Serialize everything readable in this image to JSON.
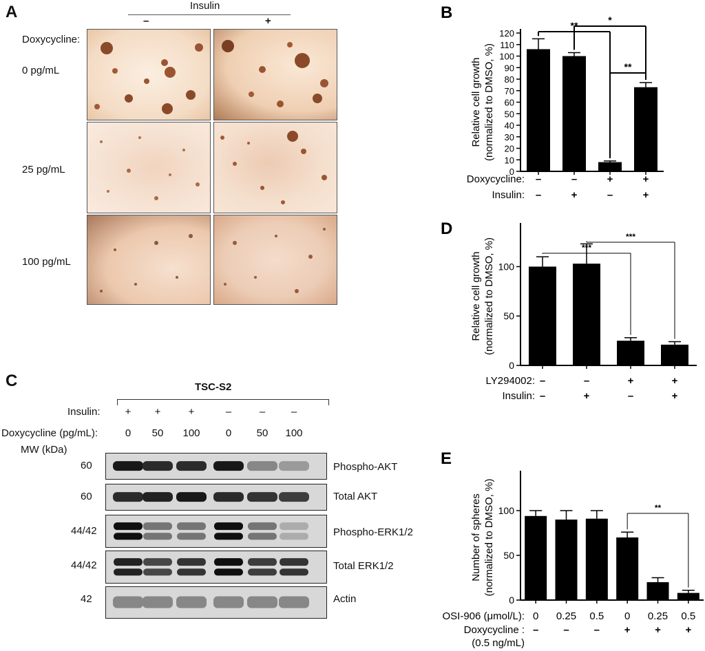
{
  "panel_a": {
    "letter": "A",
    "insulin_label": "Insulin",
    "insulin_minus": "–",
    "insulin_plus": "+",
    "dox_label": "Doxycycline:",
    "rows": [
      "0 pg/mL",
      "25 pg/mL",
      "100 pg/mL"
    ]
  },
  "panel_c": {
    "letter": "C",
    "cell_line": "TSC-S2",
    "insulin_label": "Insulin:",
    "insulin_values": [
      "+",
      "+",
      "+",
      "–",
      "–",
      "–"
    ],
    "dox_label": "Doxycycline (pg/mL):",
    "dox_values": [
      "0",
      "50",
      "100",
      "0",
      "50",
      "100"
    ],
    "mw_label": "MW  (kDa)",
    "blots": [
      {
        "mw": "60",
        "name": "Phospho-AKT",
        "intensity": [
          0.95,
          0.85,
          0.85,
          0.95,
          0.35,
          0.25
        ]
      },
      {
        "mw": "60",
        "name": "Total AKT",
        "intensity": [
          0.85,
          0.9,
          0.95,
          0.85,
          0.8,
          0.75
        ]
      },
      {
        "mw": "44/42",
        "name": "Phospho-ERK1/2",
        "intensity": [
          1.0,
          0.45,
          0.45,
          1.0,
          0.45,
          0.15
        ]
      },
      {
        "mw": "44/42",
        "name": "Total ERK1/2",
        "intensity": [
          0.9,
          0.7,
          0.8,
          1.0,
          0.75,
          0.8
        ]
      },
      {
        "mw": "42",
        "name": "Actin",
        "intensity": [
          0.35,
          0.35,
          0.35,
          0.35,
          0.35,
          0.35
        ]
      }
    ]
  },
  "chart_data": [
    {
      "id": "B",
      "type": "bar",
      "panel_letter": "B",
      "ylabel": [
        "Relative cell growth",
        "(normalized to DMSO, %)"
      ],
      "ylim": [
        0,
        120
      ],
      "yticks": [
        0,
        10,
        20,
        30,
        40,
        50,
        60,
        70,
        80,
        90,
        100,
        110,
        120
      ],
      "values": [
        106,
        100,
        8,
        73
      ],
      "errors": [
        9,
        3,
        1,
        4
      ],
      "conditions": [
        {
          "label": "Doxycycline:",
          "values": [
            "–",
            "–",
            "+",
            "+"
          ]
        },
        {
          "label": "Insulin:",
          "values": [
            "–",
            "+",
            "–",
            "+"
          ]
        }
      ],
      "significance": [
        {
          "bars": [
            0,
            2
          ],
          "label": "**"
        },
        {
          "bars": [
            1,
            3
          ],
          "label": "*"
        },
        {
          "bars": [
            2,
            3
          ],
          "label": "**"
        }
      ]
    },
    {
      "id": "D",
      "type": "bar",
      "panel_letter": "D",
      "ylabel": [
        "Relative cell growth",
        "(normalized to DMSO, %)"
      ],
      "ylim": [
        0,
        140
      ],
      "yticks": [
        0,
        50,
        100
      ],
      "values": [
        100,
        103,
        25,
        21
      ],
      "errors": [
        10,
        20,
        3,
        3
      ],
      "conditions": [
        {
          "label": "LY294002:",
          "values": [
            "–",
            "–",
            "+",
            "+"
          ]
        },
        {
          "label": "Insulin:",
          "values": [
            "–",
            "+",
            "–",
            "+"
          ]
        }
      ],
      "significance": [
        {
          "bars": [
            0,
            2
          ],
          "label": "***"
        },
        {
          "bars": [
            1,
            3
          ],
          "label": "***"
        }
      ]
    },
    {
      "id": "E",
      "type": "bar",
      "panel_letter": "E",
      "ylabel": [
        "Number of spheres",
        "(normalized to DMSO, %)"
      ],
      "ylim": [
        0,
        140
      ],
      "yticks": [
        0,
        50,
        100
      ],
      "values": [
        94,
        90,
        91,
        70,
        20,
        8
      ],
      "errors": [
        6,
        10,
        9,
        6,
        5,
        3
      ],
      "conditions": [
        {
          "label": "OSI-906 (μmol/L):",
          "values": [
            "0",
            "0.25",
            "0.5",
            "0",
            "0.25",
            "0.5"
          ]
        },
        {
          "label": "Doxycycline :",
          "values": [
            "–",
            "–",
            "–",
            "+",
            "+",
            "+"
          ]
        }
      ],
      "condition_note": "(0.5 ng/mL)",
      "significance": [
        {
          "bars": [
            3,
            5
          ],
          "label": "**"
        }
      ]
    }
  ]
}
